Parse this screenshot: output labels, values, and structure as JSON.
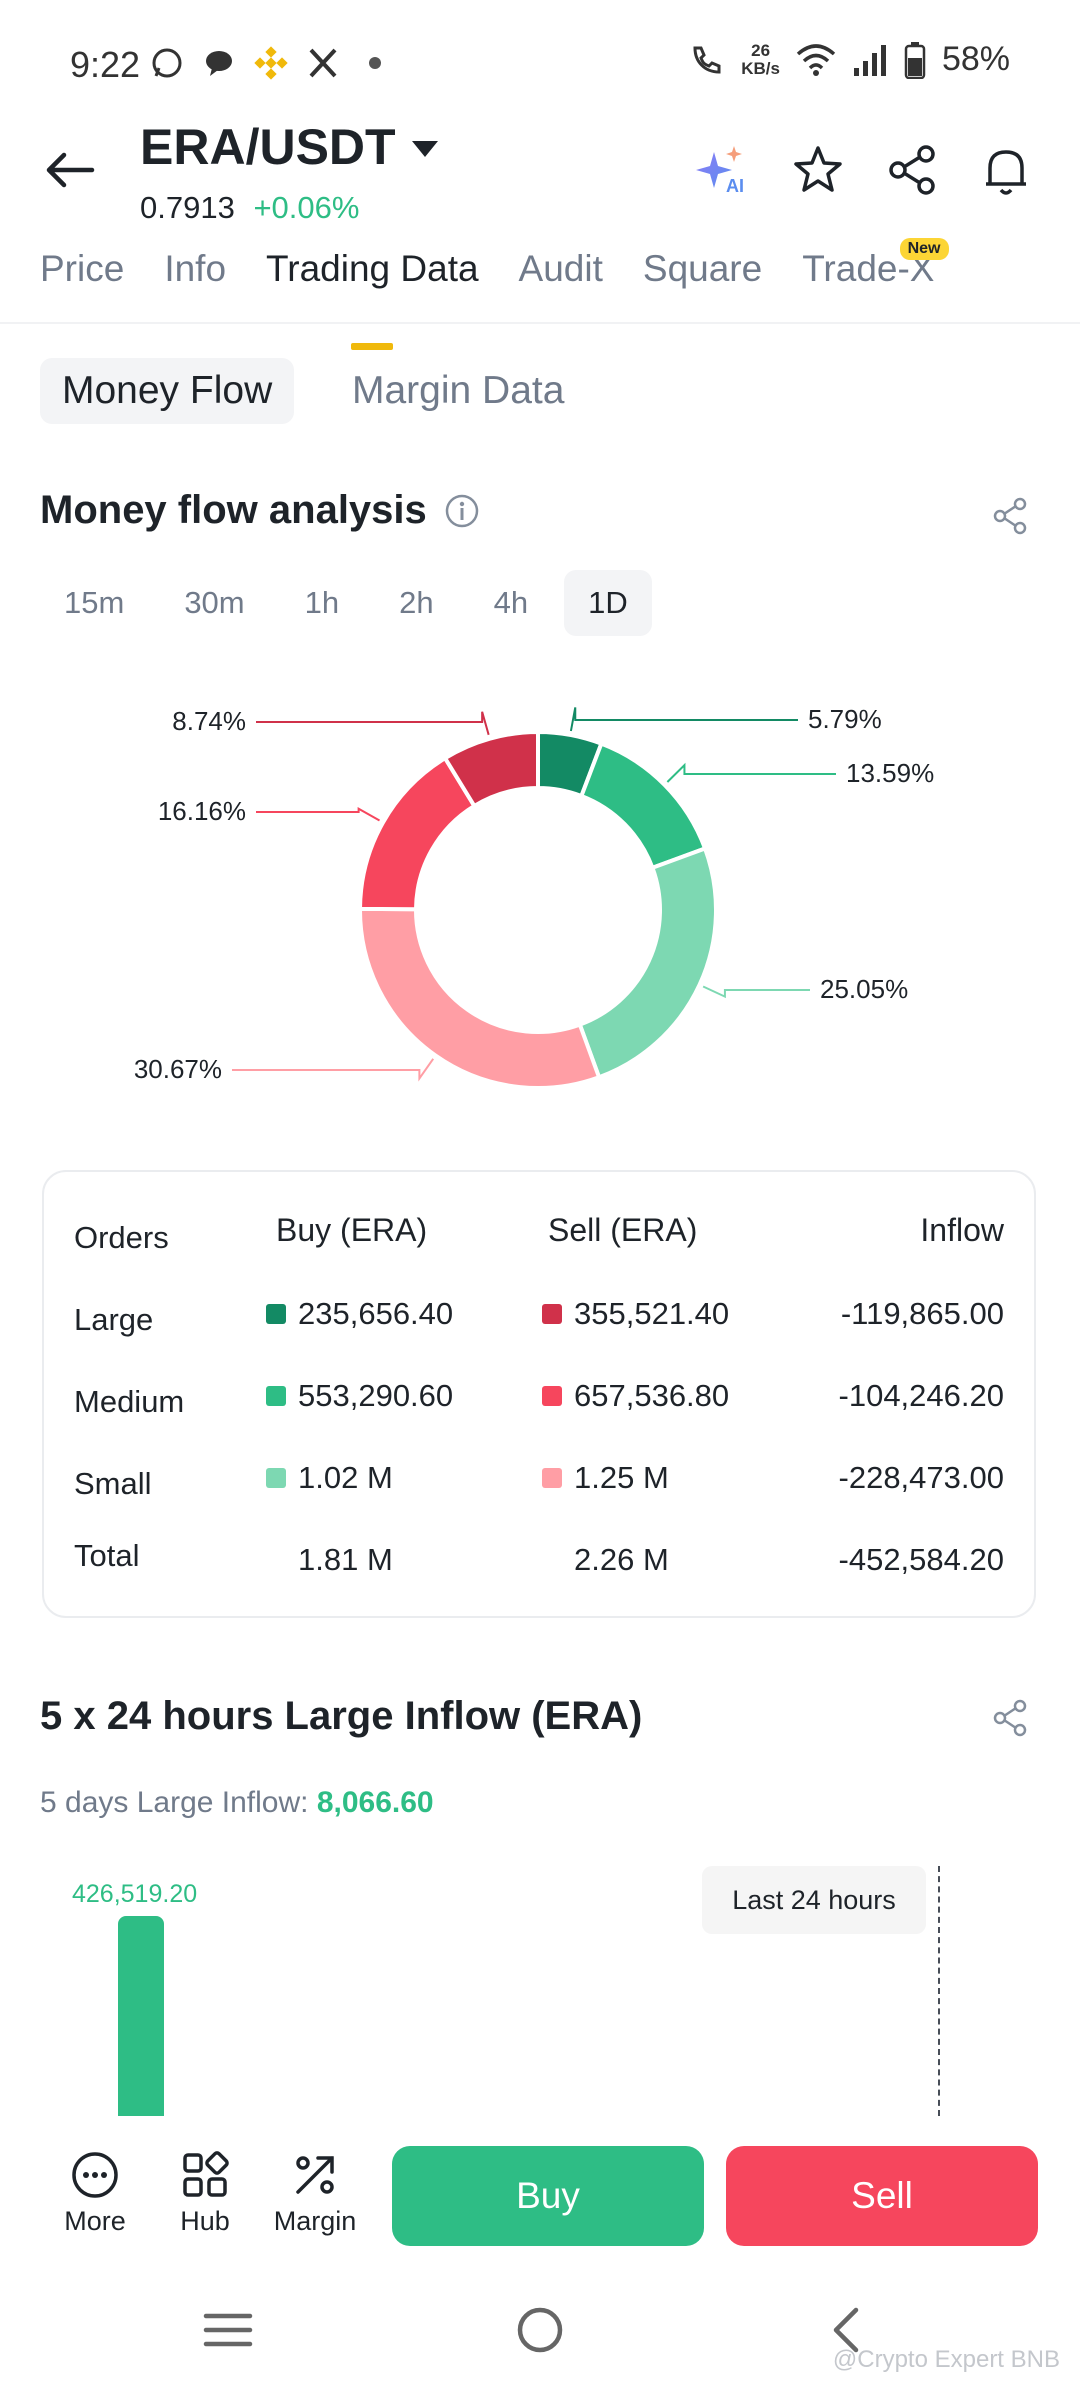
{
  "status": {
    "time": "9:22",
    "net_speed_value": "26",
    "net_speed_unit": "KB/s",
    "battery": "58%"
  },
  "header": {
    "pair": "ERA/USDT",
    "price": "0.7913",
    "change": "+0.06%"
  },
  "tabs": [
    {
      "label": "Price"
    },
    {
      "label": "Info"
    },
    {
      "label": "Trading Data"
    },
    {
      "label": "Audit"
    },
    {
      "label": "Square"
    },
    {
      "label": "Trade-X",
      "badge": "New"
    }
  ],
  "subtabs": {
    "money_flow": "Money Flow",
    "margin_data": "Margin Data"
  },
  "money_flow": {
    "title": "Money flow analysis",
    "intervals": [
      "15m",
      "30m",
      "1h",
      "2h",
      "4h",
      "1D"
    ],
    "active_interval": "1D"
  },
  "chart_data": {
    "type": "pie",
    "slices": [
      {
        "label": "5.79%",
        "value": 5.79,
        "color": "#138a64"
      },
      {
        "label": "13.59%",
        "value": 13.59,
        "color": "#2ebd85"
      },
      {
        "label": "25.05%",
        "value": 25.05,
        "color": "#7dd8b2"
      },
      {
        "label": "30.67%",
        "value": 30.67,
        "color": "#ff9ea5"
      },
      {
        "label": "16.16%",
        "value": 16.16,
        "color": "#f6465d"
      },
      {
        "label": "8.74%",
        "value": 8.74,
        "color": "#d0314a"
      }
    ]
  },
  "table": {
    "headers": {
      "orders": "Orders",
      "buy": "Buy (ERA)",
      "sell": "Sell (ERA)",
      "inflow": "Inflow"
    },
    "rows": [
      {
        "name": "Large",
        "buy": "235,656.40",
        "sell": "355,521.40",
        "inflow": "-119,865.00",
        "buy_color": "#138a64",
        "sell_color": "#d0314a"
      },
      {
        "name": "Medium",
        "buy": "553,290.60",
        "sell": "657,536.80",
        "inflow": "-104,246.20",
        "buy_color": "#2ebd85",
        "sell_color": "#f6465d"
      },
      {
        "name": "Small",
        "buy": "1.02 M",
        "sell": "1.25 M",
        "inflow": "-228,473.00",
        "buy_color": "#7dd8b2",
        "sell_color": "#ff9ea5"
      }
    ],
    "total": {
      "name": "Total",
      "buy": "1.81 M",
      "sell": "2.26 M",
      "inflow": "-452,584.20"
    }
  },
  "large_inflow": {
    "title": "5 x 24 hours Large Inflow (ERA)",
    "subtitle_label": "5 days Large Inflow:",
    "subtitle_value": "8,066.60",
    "bar_value_label": "426,519.20",
    "bar_value": 426519.2,
    "tooltip": "Last 24 hours"
  },
  "actions": {
    "more": "More",
    "hub": "Hub",
    "margin": "Margin",
    "buy": "Buy",
    "sell": "Sell"
  },
  "watermark": "@Crypto Expert BNB"
}
